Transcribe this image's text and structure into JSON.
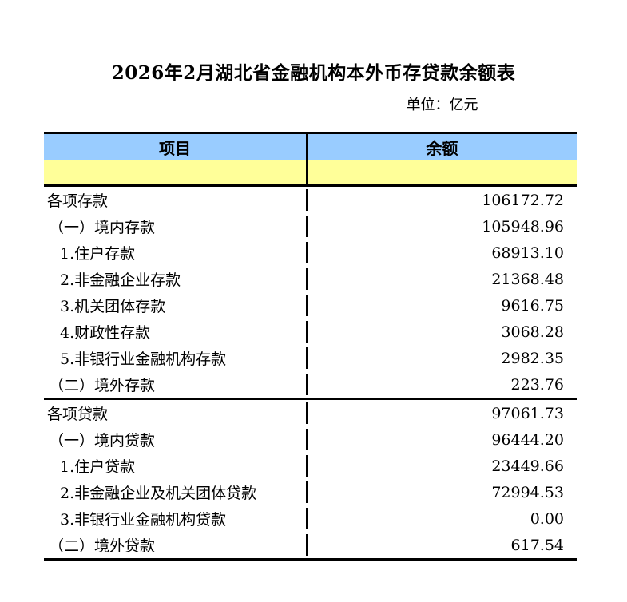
{
  "page": {
    "title": "2026年2月湖北省金融机构本外币存贷款余额表",
    "unit_label": "单位：亿元"
  },
  "colors": {
    "header_bg": "#99CCFF",
    "subheader_bg": "#FFFF99",
    "border": "#000000",
    "text": "#000000",
    "background": "#FFFFFF"
  },
  "table": {
    "columns": [
      {
        "label": "项目"
      },
      {
        "label": "余额"
      }
    ],
    "sections": [
      {
        "name": "deposits",
        "rows": [
          {
            "label": "各项存款",
            "value": "106172.72",
            "indent": 0
          },
          {
            "label": "（一）境内存款",
            "value": "105948.96",
            "indent": 1
          },
          {
            "label": "1.住户存款",
            "value": "68913.10",
            "indent": 2
          },
          {
            "label": "2.非金融企业存款",
            "value": "21368.48",
            "indent": 2
          },
          {
            "label": "3.机关团体存款",
            "value": "9616.75",
            "indent": 2
          },
          {
            "label": "4.财政性存款",
            "value": "3068.28",
            "indent": 2
          },
          {
            "label": "5.非银行业金融机构存款",
            "value": "2982.35",
            "indent": 2
          },
          {
            "label": "（二）境外存款",
            "value": "223.76",
            "indent": 1
          }
        ]
      },
      {
        "name": "loans",
        "rows": [
          {
            "label": "各项贷款",
            "value": "97061.73",
            "indent": 0
          },
          {
            "label": "（一）境内贷款",
            "value": "96444.20",
            "indent": 1
          },
          {
            "label": "1.住户贷款",
            "value": "23449.66",
            "indent": 2
          },
          {
            "label": "2.非金融企业及机关团体贷款",
            "value": "72994.53",
            "indent": 2
          },
          {
            "label": "3.非银行业金融机构贷款",
            "value": "0.00",
            "indent": 2
          },
          {
            "label": "（二）境外贷款",
            "value": "617.54",
            "indent": 1
          }
        ]
      }
    ]
  }
}
